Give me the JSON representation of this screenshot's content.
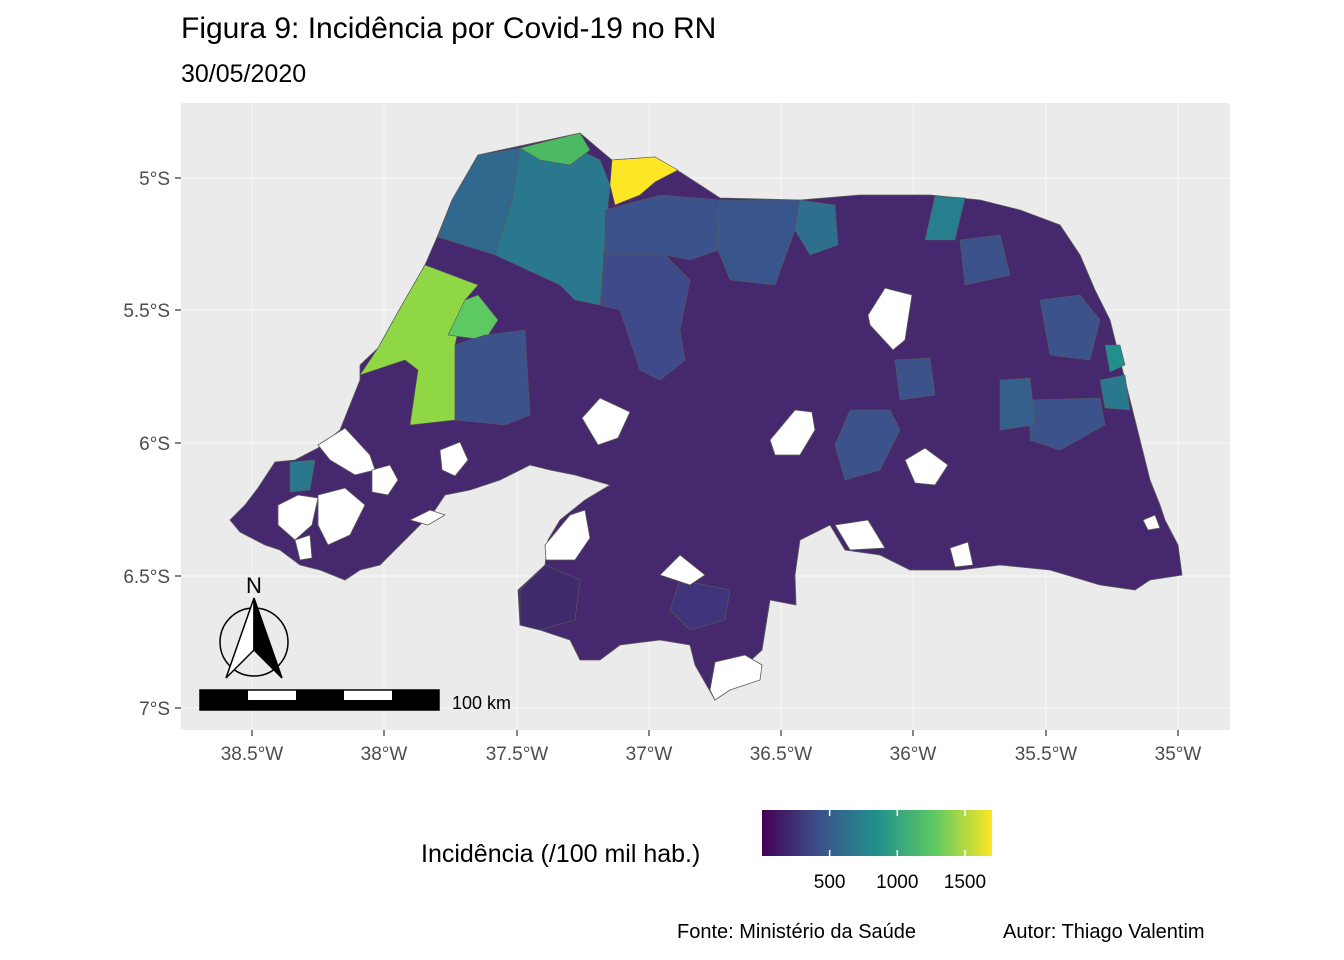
{
  "title": "Figura 9: Incidência por Covid-19 no RN",
  "subtitle": "30/05/2020",
  "axes": {
    "y_ticks": [
      "5°S",
      "5.5°S",
      "6°S",
      "6.5°S",
      "7°S"
    ],
    "x_ticks": [
      "38.5°W",
      "38°W",
      "37.5°W",
      "37°W",
      "36.5°W",
      "36°W",
      "35.5°W",
      "35°W"
    ]
  },
  "north_arrow": {
    "label": "N"
  },
  "scale_bar": {
    "label": "100 km"
  },
  "legend": {
    "title": "Incidência (/100 mil hab.)",
    "ticks": [
      "500",
      "1000",
      "1500"
    ],
    "tick_values": [
      500,
      1000,
      1500
    ],
    "range": [
      0,
      1700
    ],
    "colors": [
      "#440154",
      "#3b528b",
      "#21908c",
      "#5dc963",
      "#fde725"
    ]
  },
  "caption": {
    "source": "Fonte: Ministério da Saúde",
    "author": "Autor: Thiago Valentim"
  },
  "map": {
    "panel_background": "#ebebeb",
    "missing_color": "#ffffff",
    "dominant_color": "#46286e"
  }
}
